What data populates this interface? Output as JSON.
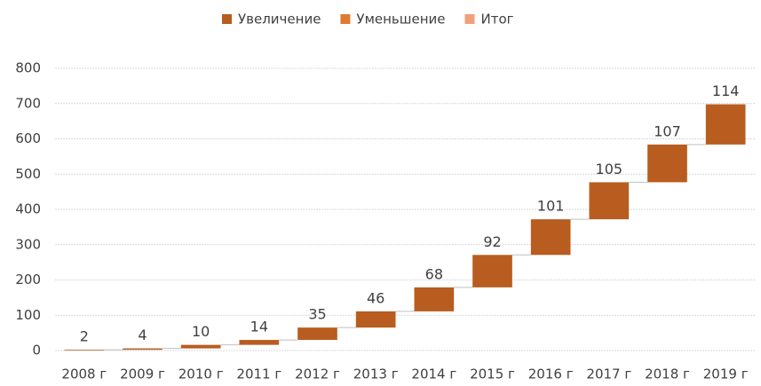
{
  "chart_data": {
    "type": "waterfall",
    "categories": [
      "2008 г",
      "2009 г",
      "2010 г",
      "2011 г",
      "2012 г",
      "2013 г",
      "2014 г",
      "2015 г",
      "2016 г",
      "2017 г",
      "2018 г",
      "2019 г"
    ],
    "values": [
      2,
      4,
      10,
      14,
      35,
      46,
      68,
      92,
      101,
      105,
      107,
      114
    ],
    "legend": [
      {
        "name": "Увеличение",
        "color": "#b85d1f"
      },
      {
        "name": "Уменьшение",
        "color": "#e07a32"
      },
      {
        "name": "Итог",
        "color": "#f2a07c"
      }
    ],
    "color": "#b85d1f",
    "ylim": [
      0,
      800
    ],
    "yticks": [
      0,
      100,
      200,
      300,
      400,
      500,
      600,
      700,
      800
    ],
    "grid": true
  }
}
